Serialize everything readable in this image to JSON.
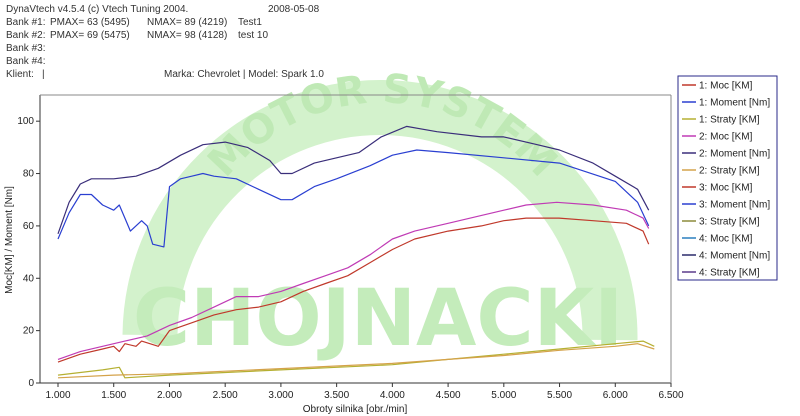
{
  "header": {
    "app": "DynaVtech v4.5.4 (c) Vtech Tuning 2004.",
    "date": "2008-05-08",
    "bank1": {
      "label": "Bank #1:",
      "pmax": "PMAX= 63 (5495)",
      "nmax": "NMAX= 89 (4219)",
      "name": "Test1"
    },
    "bank2": {
      "label": "Bank #2:",
      "pmax": "PMAX= 69 (5475)",
      "nmax": "NMAX= 98 (4128)",
      "name": "test 10"
    },
    "bank3": "Bank #3:",
    "bank4": "Bank #4:",
    "klient": "Klient:",
    "klient_sep": "|",
    "marka": "Marka: Chevrolet | Model: Spark 1.0"
  },
  "watermark": {
    "main": "CHOJNACKI",
    "arc": "MOTOR SYSTEM",
    "color": "#c9efc0"
  },
  "chart_data": {
    "type": "line",
    "xlabel": "Obroty silnika [obr./min]",
    "ylabel": "Moc[KM] / Moment [Nm]",
    "xlim": [
      1000,
      6500
    ],
    "ylim": [
      0,
      110
    ],
    "x_ticks": [
      "1.000",
      "1.500",
      "2.000",
      "2.500",
      "3.000",
      "3.500",
      "4.000",
      "4.500",
      "5.000",
      "5.500",
      "6.000",
      "6.500"
    ],
    "x_tick_values": [
      1000,
      1500,
      2000,
      2500,
      3000,
      3500,
      4000,
      4500,
      5000,
      5500,
      6000,
      6500
    ],
    "y_ticks": [
      "0",
      "20",
      "40",
      "60",
      "80",
      "100"
    ],
    "y_tick_values": [
      0,
      20,
      40,
      60,
      80,
      100
    ],
    "grid": false,
    "legend_position": "right",
    "series": [
      {
        "name": "1: Moc [KM]",
        "color": "#c0392b",
        "data": [
          [
            1000,
            8
          ],
          [
            1200,
            11
          ],
          [
            1400,
            13
          ],
          [
            1500,
            14
          ],
          [
            1550,
            12
          ],
          [
            1600,
            15
          ],
          [
            1700,
            14
          ],
          [
            1750,
            16
          ],
          [
            1900,
            14
          ],
          [
            2000,
            20
          ],
          [
            2200,
            23
          ],
          [
            2400,
            26
          ],
          [
            2600,
            28
          ],
          [
            2800,
            29
          ],
          [
            3000,
            31
          ],
          [
            3200,
            35
          ],
          [
            3400,
            38
          ],
          [
            3600,
            41
          ],
          [
            3800,
            46
          ],
          [
            4000,
            51
          ],
          [
            4200,
            55
          ],
          [
            4500,
            58
          ],
          [
            4800,
            60
          ],
          [
            5000,
            62
          ],
          [
            5200,
            63
          ],
          [
            5495,
            63
          ],
          [
            5800,
            62
          ],
          [
            6100,
            61
          ],
          [
            6250,
            58
          ],
          [
            6300,
            53
          ]
        ]
      },
      {
        "name": "1: Moment [Nm]",
        "color": "#2a3fd1",
        "data": [
          [
            1000,
            55
          ],
          [
            1100,
            65
          ],
          [
            1200,
            72
          ],
          [
            1300,
            72
          ],
          [
            1400,
            68
          ],
          [
            1500,
            66
          ],
          [
            1550,
            68
          ],
          [
            1600,
            63
          ],
          [
            1650,
            58
          ],
          [
            1750,
            62
          ],
          [
            1800,
            60
          ],
          [
            1850,
            53
          ],
          [
            1950,
            52
          ],
          [
            2000,
            75
          ],
          [
            2100,
            78
          ],
          [
            2200,
            79
          ],
          [
            2300,
            80
          ],
          [
            2400,
            79
          ],
          [
            2600,
            78
          ],
          [
            2800,
            74
          ],
          [
            3000,
            70
          ],
          [
            3100,
            70
          ],
          [
            3300,
            75
          ],
          [
            3500,
            78
          ],
          [
            3800,
            83
          ],
          [
            4000,
            87
          ],
          [
            4219,
            89
          ],
          [
            4500,
            88
          ],
          [
            5000,
            86
          ],
          [
            5500,
            84
          ],
          [
            6000,
            77
          ],
          [
            6200,
            69
          ],
          [
            6300,
            60
          ]
        ]
      },
      {
        "name": "1: Straty [KM]",
        "color": "#b5b032",
        "data": [
          [
            1000,
            3
          ],
          [
            1200,
            4
          ],
          [
            1400,
            5
          ],
          [
            1550,
            6
          ],
          [
            1600,
            2
          ],
          [
            2000,
            3
          ],
          [
            2500,
            4
          ],
          [
            3000,
            5
          ],
          [
            3500,
            6
          ],
          [
            4000,
            7
          ],
          [
            4500,
            9
          ],
          [
            5000,
            11
          ],
          [
            5500,
            13
          ],
          [
            6000,
            15
          ],
          [
            6250,
            16
          ],
          [
            6350,
            14
          ]
        ]
      },
      {
        "name": "2: Moc [KM]",
        "color": "#c03bb5",
        "data": [
          [
            1000,
            9
          ],
          [
            1200,
            12
          ],
          [
            1400,
            14
          ],
          [
            1600,
            16
          ],
          [
            1800,
            18
          ],
          [
            2000,
            22
          ],
          [
            2200,
            25
          ],
          [
            2400,
            29
          ],
          [
            2600,
            33
          ],
          [
            2800,
            33
          ],
          [
            3000,
            35
          ],
          [
            3200,
            38
          ],
          [
            3400,
            41
          ],
          [
            3600,
            44
          ],
          [
            3800,
            49
          ],
          [
            4000,
            55
          ],
          [
            4200,
            58
          ],
          [
            4500,
            61
          ],
          [
            4800,
            64
          ],
          [
            5000,
            66
          ],
          [
            5200,
            68
          ],
          [
            5475,
            69
          ],
          [
            5800,
            68
          ],
          [
            6100,
            66
          ],
          [
            6250,
            63
          ],
          [
            6300,
            59
          ]
        ]
      },
      {
        "name": "2: Moment [Nm]",
        "color": "#3a2e7a",
        "data": [
          [
            1000,
            57
          ],
          [
            1100,
            69
          ],
          [
            1200,
            76
          ],
          [
            1300,
            78
          ],
          [
            1500,
            78
          ],
          [
            1700,
            79
          ],
          [
            1900,
            82
          ],
          [
            2100,
            87
          ],
          [
            2300,
            91
          ],
          [
            2500,
            92
          ],
          [
            2700,
            90
          ],
          [
            2900,
            85
          ],
          [
            3000,
            80
          ],
          [
            3100,
            80
          ],
          [
            3300,
            84
          ],
          [
            3500,
            86
          ],
          [
            3700,
            88
          ],
          [
            3900,
            94
          ],
          [
            4128,
            98
          ],
          [
            4400,
            96
          ],
          [
            4800,
            94
          ],
          [
            5000,
            94
          ],
          [
            5300,
            91
          ],
          [
            5500,
            89
          ],
          [
            5800,
            84
          ],
          [
            6000,
            79
          ],
          [
            6200,
            74
          ],
          [
            6300,
            66
          ]
        ]
      },
      {
        "name": "2: Straty [KM]",
        "color": "#d4a24a",
        "data": [
          [
            1000,
            2
          ],
          [
            1500,
            3
          ],
          [
            2000,
            3.5
          ],
          [
            2500,
            4.5
          ],
          [
            3000,
            5.5
          ],
          [
            3500,
            6.5
          ],
          [
            4000,
            7.5
          ],
          [
            4500,
            9
          ],
          [
            5000,
            10.5
          ],
          [
            5500,
            12.5
          ],
          [
            6000,
            14
          ],
          [
            6200,
            15
          ],
          [
            6350,
            13
          ]
        ]
      },
      {
        "name": "3: Moc [KM]",
        "color": "#c0392b",
        "data": []
      },
      {
        "name": "3: Moment [Nm]",
        "color": "#2a3fd1",
        "data": []
      },
      {
        "name": "3: Straty [KM]",
        "color": "#8c8a3a",
        "data": []
      },
      {
        "name": "4: Moc [KM]",
        "color": "#2b7fbf",
        "data": []
      },
      {
        "name": "4: Moment [Nm]",
        "color": "#2a2a6a",
        "data": []
      },
      {
        "name": "4: Straty [KM]",
        "color": "#5a3a8a",
        "data": []
      }
    ]
  }
}
